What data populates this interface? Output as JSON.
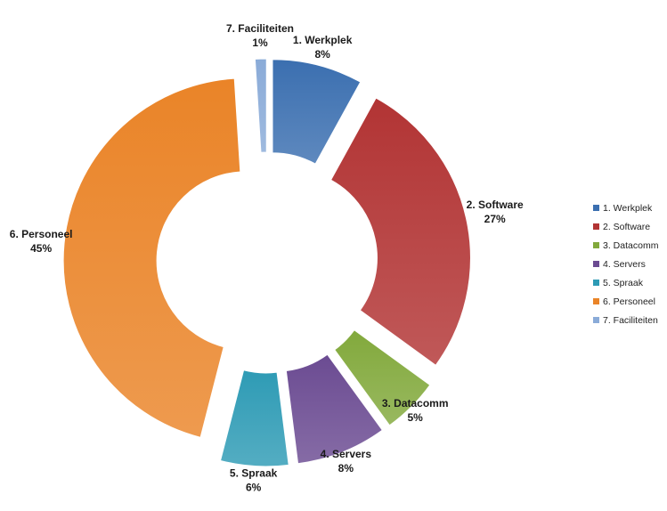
{
  "chart_data": {
    "type": "pie",
    "variant": "exploded-doughnut",
    "title": "",
    "categories": [
      "1. Werkplek",
      "2. Software",
      "3. Datacomm",
      "4. Servers",
      "5. Spraak",
      "6. Personeel",
      "7. Faciliteiten"
    ],
    "values": [
      8,
      27,
      5,
      8,
      6,
      45,
      1
    ],
    "value_labels": [
      "8%",
      "27%",
      "5%",
      "8%",
      "6%",
      "45%",
      "1%"
    ],
    "colors": [
      "#3b6fb0",
      "#b23434",
      "#82a93c",
      "#6b4b92",
      "#2e9bb5",
      "#ea8428",
      "#8aabd8"
    ],
    "legend_position": "right"
  }
}
